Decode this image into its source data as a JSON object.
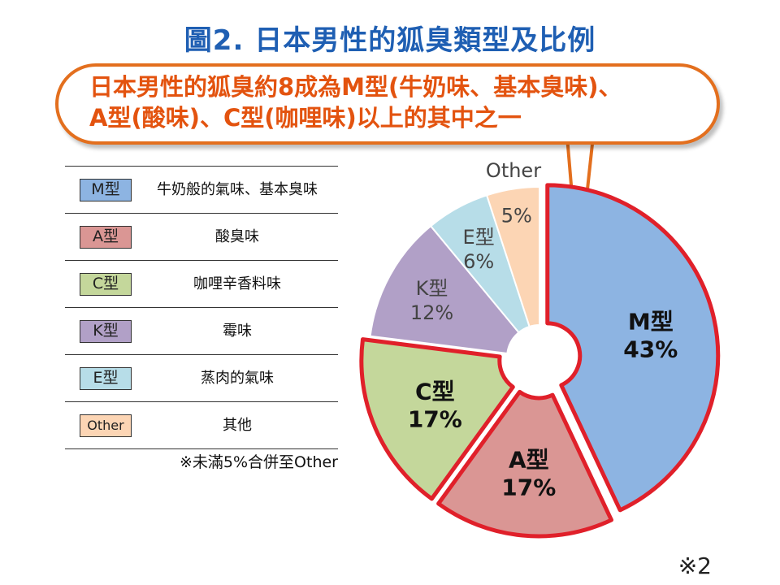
{
  "title": "圖2. 日本男性的狐臭類型及比例",
  "callout": {
    "line1": "日本男性的狐臭約8成為M型(牛奶味、基本臭味)、",
    "line2": "A型(酸味)、C型(咖哩味)以上的其中之一"
  },
  "legend": [
    {
      "type": "M型",
      "desc": "牛奶般的氣味、基本臭味",
      "color": "#8db4e2"
    },
    {
      "type": "A型",
      "desc": "酸臭味",
      "color": "#da9694"
    },
    {
      "type": "C型",
      "desc": "咖哩辛香料味",
      "color": "#c4d79b"
    },
    {
      "type": "K型",
      "desc": "霉味",
      "color": "#b1a0c7"
    },
    {
      "type": "E型",
      "desc": "蒸肉的氣味",
      "color": "#b7dde8"
    },
    {
      "type": "Other",
      "desc": "其他",
      "color": "#fcd5b4"
    }
  ],
  "note": "※未滿5%合併至Other",
  "reference": "※2",
  "chart_data": {
    "type": "pie",
    "slices": [
      {
        "label": "M型",
        "value_label": "43%",
        "value": 43,
        "color": "#8db4e2",
        "highlight": true
      },
      {
        "label": "A型",
        "value_label": "17%",
        "value": 17,
        "color": "#da9694",
        "highlight": true
      },
      {
        "label": "C型",
        "value_label": "17%",
        "value": 17,
        "color": "#c4d79b",
        "highlight": true
      },
      {
        "label": "K型",
        "value_label": "12%",
        "value": 12,
        "color": "#b1a0c7",
        "highlight": false
      },
      {
        "label": "E型",
        "value_label": "6%",
        "value": 6,
        "color": "#b7dde8",
        "highlight": false
      },
      {
        "label": "Other",
        "value_label": "5%",
        "value": 5,
        "color": "#fcd5b4",
        "highlight": false
      }
    ],
    "highlight_color": "#e0202a"
  }
}
